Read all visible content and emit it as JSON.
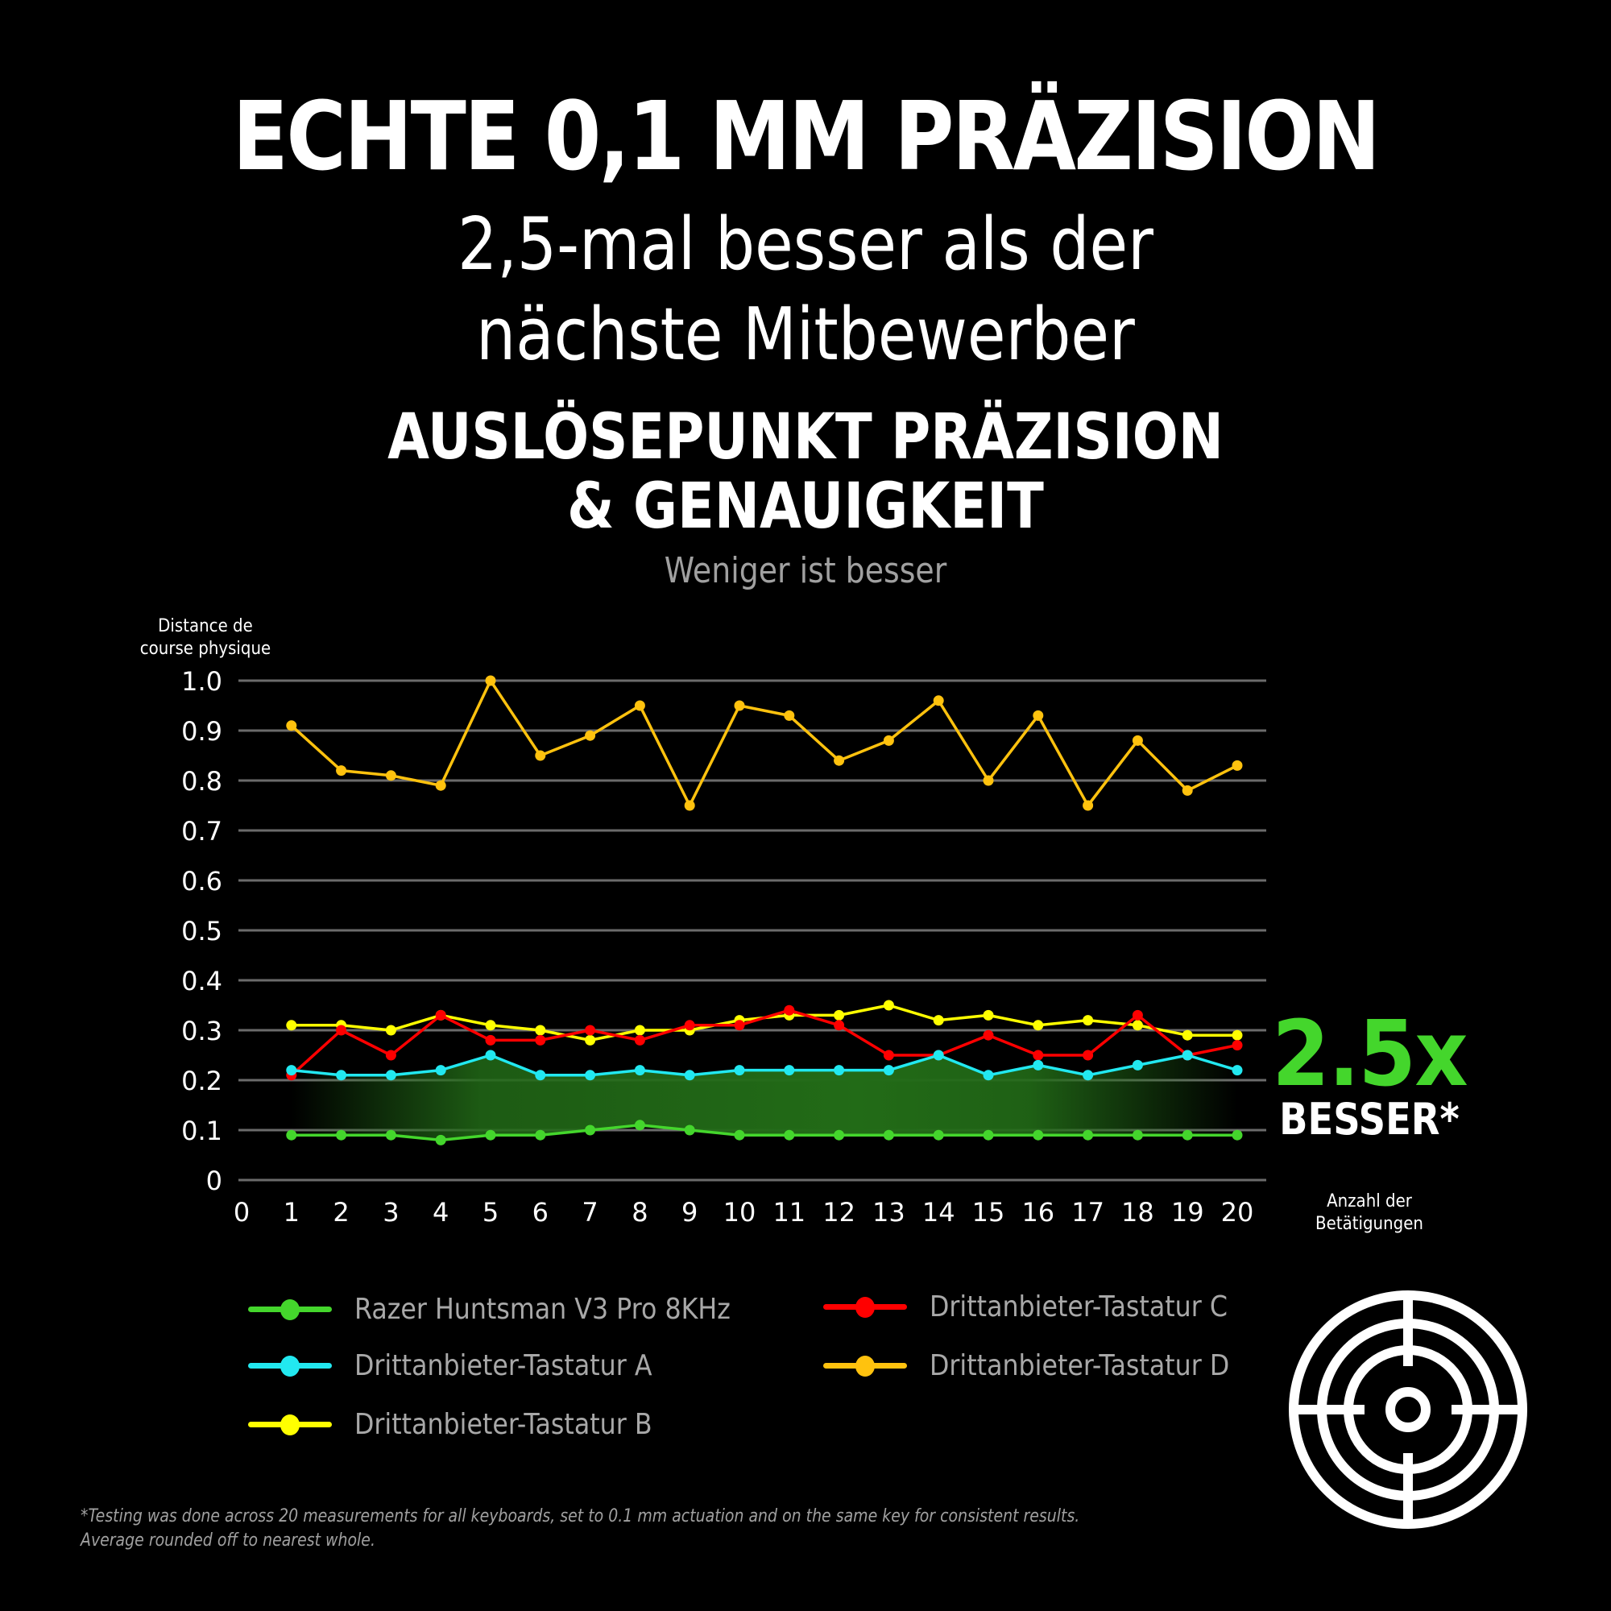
{
  "header": {
    "title": "ECHTE 0,1 MM PRÄZISION",
    "subtitle_line1": "2,5-mal besser als der",
    "subtitle_line2": "nächste Mitbewerber"
  },
  "chart_header": {
    "title_line1": "AUSLÖSEPUNKT PRÄZISION",
    "title_line2": "& GENAUIGKEIT",
    "subtitle": "Weniger ist besser"
  },
  "axes": {
    "ylabel_line1": "Distance de",
    "ylabel_line2": "course physique",
    "xlabel_line1": "Anzahl der",
    "xlabel_line2": "Betätigungen",
    "yticks": [
      "0",
      "0.1",
      "0.2",
      "0.3",
      "0.4",
      "0.5",
      "0.6",
      "0.7",
      "0.8",
      "0.9",
      "1.0"
    ],
    "xticks": [
      "0",
      "1",
      "2",
      "3",
      "4",
      "5",
      "6",
      "7",
      "8",
      "9",
      "10",
      "11",
      "12",
      "13",
      "14",
      "15",
      "16",
      "17",
      "18",
      "19",
      "20"
    ]
  },
  "badge": {
    "value": "2.5x",
    "label": "BESSER*",
    "color": "#44d62c"
  },
  "legend": [
    {
      "label": "Razer Huntsman V3 Pro 8KHz",
      "color": "#44d62c"
    },
    {
      "label": "Drittanbieter-Tastatur A",
      "color": "#22e8f0"
    },
    {
      "label": "Drittanbieter-Tastatur B",
      "color": "#ffff00"
    },
    {
      "label": "Drittanbieter-Tastatur C",
      "color": "#ff0000"
    },
    {
      "label": "Drittanbieter-Tastatur D",
      "color": "#ffc20e"
    }
  ],
  "footnote": {
    "line1": "*Testing was done across 20 measurements for all keyboards, set to 0.1 mm actuation and on the same key for consistent results.",
    "line2": "Average rounded off to nearest whole."
  },
  "icons": {
    "target": "target-crosshair-icon"
  },
  "chart_data": {
    "type": "line",
    "title": "AUSLÖSEPUNKT PRÄZISION & GENAUIGKEIT",
    "subtitle": "Weniger ist besser",
    "xlabel": "Anzahl der Betätigungen",
    "ylabel": "Distance de course physique",
    "xlim": [
      0,
      20
    ],
    "ylim": [
      0,
      1.0
    ],
    "grid": true,
    "legend_position": "bottom",
    "x": [
      1,
      2,
      3,
      4,
      5,
      6,
      7,
      8,
      9,
      10,
      11,
      12,
      13,
      14,
      15,
      16,
      17,
      18,
      19,
      20
    ],
    "series": [
      {
        "name": "Razer Huntsman V3 Pro 8KHz",
        "color": "#44d62c",
        "values": [
          0.09,
          0.09,
          0.09,
          0.08,
          0.09,
          0.09,
          0.1,
          0.11,
          0.1,
          0.09,
          0.09,
          0.09,
          0.09,
          0.09,
          0.09,
          0.09,
          0.09,
          0.09,
          0.09,
          0.09
        ]
      },
      {
        "name": "Drittanbieter-Tastatur A",
        "color": "#22e8f0",
        "values": [
          0.22,
          0.21,
          0.21,
          0.22,
          0.25,
          0.21,
          0.21,
          0.22,
          0.21,
          0.22,
          0.22,
          0.22,
          0.22,
          0.25,
          0.21,
          0.23,
          0.21,
          0.23,
          0.25,
          0.22
        ]
      },
      {
        "name": "Drittanbieter-Tastatur B",
        "color": "#ffff00",
        "values": [
          0.31,
          0.31,
          0.3,
          0.33,
          0.31,
          0.3,
          0.28,
          0.3,
          0.3,
          0.32,
          0.33,
          0.33,
          0.35,
          0.32,
          0.33,
          0.31,
          0.32,
          0.31,
          0.29,
          0.29
        ]
      },
      {
        "name": "Drittanbieter-Tastatur C",
        "color": "#ff0000",
        "values": [
          0.21,
          0.3,
          0.25,
          0.33,
          0.28,
          0.28,
          0.3,
          0.28,
          0.31,
          0.31,
          0.34,
          0.31,
          0.25,
          0.25,
          0.29,
          0.25,
          0.25,
          0.33,
          0.25,
          0.27
        ]
      },
      {
        "name": "Drittanbieter-Tastatur D",
        "color": "#ffc20e",
        "values": [
          0.91,
          0.82,
          0.81,
          0.79,
          1.0,
          0.85,
          0.89,
          0.95,
          0.75,
          0.95,
          0.93,
          0.84,
          0.88,
          0.96,
          0.8,
          0.93,
          0.75,
          0.88,
          0.78,
          0.83
        ]
      }
    ],
    "annotations": [
      "2.5x BESSER*"
    ],
    "highlight_band": {
      "between": [
        "Razer Huntsman V3 Pro 8KHz",
        "Drittanbieter-Tastatur A"
      ],
      "color": "#226b17"
    }
  }
}
